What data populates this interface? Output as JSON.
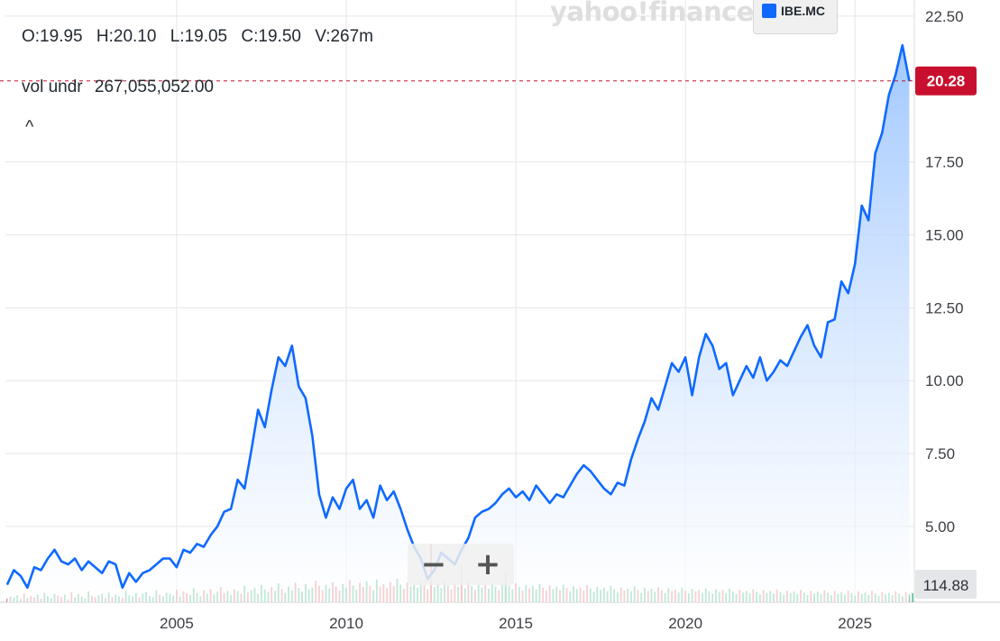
{
  "header": {
    "open": "O:19.95",
    "high": "H:20.10",
    "low": "L:19.05",
    "close": "C:19.50",
    "volume": "V:267m",
    "vol_label": "vol undr",
    "vol_value": "267,055,052.00",
    "collapse_icon": "chevron-up-icon",
    "collapse_glyph": "^"
  },
  "watermark": "yahoo!finance",
  "legend": {
    "label": "IBE.MC",
    "color": "#0f69ff"
  },
  "zoom": {
    "minus": "−",
    "plus": "+"
  },
  "colors": {
    "line": "#0f69ff",
    "area_top": "#9cc5ff",
    "area_bottom": "#ffffff",
    "vol_up": "#4cb88d",
    "vol_down": "#e4747b",
    "price_marker": "#c8102e",
    "volume_marker": "#8f949c",
    "grid": "#e6e6e6"
  },
  "chart_data": {
    "type": "area",
    "series": [
      {
        "name": "IBE.MC",
        "points": [
          [
            2000.0,
            3.0
          ],
          [
            2000.2,
            3.5
          ],
          [
            2000.4,
            3.3
          ],
          [
            2000.6,
            2.9
          ],
          [
            2000.8,
            3.6
          ],
          [
            2001.0,
            3.5
          ],
          [
            2001.2,
            3.9
          ],
          [
            2001.4,
            4.2
          ],
          [
            2001.6,
            3.8
          ],
          [
            2001.8,
            3.7
          ],
          [
            2002.0,
            3.9
          ],
          [
            2002.2,
            3.5
          ],
          [
            2002.4,
            3.8
          ],
          [
            2002.6,
            3.6
          ],
          [
            2002.8,
            3.4
          ],
          [
            2003.0,
            3.8
          ],
          [
            2003.2,
            3.7
          ],
          [
            2003.4,
            2.9
          ],
          [
            2003.6,
            3.4
          ],
          [
            2003.8,
            3.1
          ],
          [
            2004.0,
            3.4
          ],
          [
            2004.2,
            3.5
          ],
          [
            2004.4,
            3.7
          ],
          [
            2004.6,
            3.9
          ],
          [
            2004.8,
            3.9
          ],
          [
            2005.0,
            3.6
          ],
          [
            2005.2,
            4.2
          ],
          [
            2005.4,
            4.1
          ],
          [
            2005.6,
            4.4
          ],
          [
            2005.8,
            4.3
          ],
          [
            2006.0,
            4.7
          ],
          [
            2006.2,
            5.0
          ],
          [
            2006.4,
            5.5
          ],
          [
            2006.6,
            5.6
          ],
          [
            2006.8,
            6.6
          ],
          [
            2007.0,
            6.3
          ],
          [
            2007.2,
            7.6
          ],
          [
            2007.4,
            9.0
          ],
          [
            2007.6,
            8.4
          ],
          [
            2007.8,
            9.7
          ],
          [
            2008.0,
            10.8
          ],
          [
            2008.2,
            10.5
          ],
          [
            2008.4,
            11.2
          ],
          [
            2008.6,
            9.8
          ],
          [
            2008.8,
            9.4
          ],
          [
            2009.0,
            8.1
          ],
          [
            2009.2,
            6.1
          ],
          [
            2009.4,
            5.3
          ],
          [
            2009.6,
            6.0
          ],
          [
            2009.8,
            5.6
          ],
          [
            2010.0,
            6.3
          ],
          [
            2010.2,
            6.6
          ],
          [
            2010.4,
            5.6
          ],
          [
            2010.6,
            5.9
          ],
          [
            2010.8,
            5.3
          ],
          [
            2011.0,
            6.4
          ],
          [
            2011.2,
            5.9
          ],
          [
            2011.4,
            6.2
          ],
          [
            2011.6,
            5.6
          ],
          [
            2011.8,
            4.9
          ],
          [
            2012.0,
            4.3
          ],
          [
            2012.2,
            3.9
          ],
          [
            2012.4,
            3.2
          ],
          [
            2012.6,
            3.5
          ],
          [
            2012.8,
            4.1
          ],
          [
            2013.0,
            3.9
          ],
          [
            2013.2,
            3.7
          ],
          [
            2013.4,
            4.2
          ],
          [
            2013.6,
            4.6
          ],
          [
            2013.8,
            5.3
          ],
          [
            2014.0,
            5.5
          ],
          [
            2014.2,
            5.6
          ],
          [
            2014.4,
            5.8
          ],
          [
            2014.6,
            6.1
          ],
          [
            2014.8,
            6.3
          ],
          [
            2015.0,
            6.0
          ],
          [
            2015.2,
            6.2
          ],
          [
            2015.4,
            5.9
          ],
          [
            2015.6,
            6.4
          ],
          [
            2015.8,
            6.1
          ],
          [
            2016.0,
            5.8
          ],
          [
            2016.2,
            6.1
          ],
          [
            2016.4,
            6.0
          ],
          [
            2016.6,
            6.4
          ],
          [
            2016.8,
            6.8
          ],
          [
            2017.0,
            7.1
          ],
          [
            2017.2,
            6.9
          ],
          [
            2017.4,
            6.6
          ],
          [
            2017.6,
            6.3
          ],
          [
            2017.8,
            6.1
          ],
          [
            2018.0,
            6.5
          ],
          [
            2018.2,
            6.4
          ],
          [
            2018.4,
            7.3
          ],
          [
            2018.6,
            8.0
          ],
          [
            2018.8,
            8.6
          ],
          [
            2019.0,
            9.4
          ],
          [
            2019.2,
            9.0
          ],
          [
            2019.4,
            9.8
          ],
          [
            2019.6,
            10.6
          ],
          [
            2019.8,
            10.3
          ],
          [
            2020.0,
            10.8
          ],
          [
            2020.2,
            9.5
          ],
          [
            2020.4,
            10.8
          ],
          [
            2020.6,
            11.6
          ],
          [
            2020.8,
            11.2
          ],
          [
            2021.0,
            10.4
          ],
          [
            2021.2,
            10.6
          ],
          [
            2021.4,
            9.5
          ],
          [
            2021.6,
            10.0
          ],
          [
            2021.8,
            10.5
          ],
          [
            2022.0,
            10.1
          ],
          [
            2022.2,
            10.8
          ],
          [
            2022.4,
            10.0
          ],
          [
            2022.6,
            10.3
          ],
          [
            2022.8,
            10.7
          ],
          [
            2023.0,
            10.5
          ],
          [
            2023.2,
            11.0
          ],
          [
            2023.4,
            11.5
          ],
          [
            2023.6,
            11.9
          ],
          [
            2023.8,
            11.2
          ],
          [
            2024.0,
            10.8
          ],
          [
            2024.2,
            12.0
          ],
          [
            2024.4,
            12.1
          ],
          [
            2024.6,
            13.4
          ],
          [
            2024.8,
            13.0
          ],
          [
            2025.0,
            14.0
          ],
          [
            2025.2,
            16.0
          ],
          [
            2025.4,
            15.5
          ],
          [
            2025.6,
            17.8
          ],
          [
            2025.8,
            18.5
          ],
          [
            2026.0,
            19.8
          ],
          [
            2026.2,
            20.5
          ],
          [
            2026.4,
            21.5
          ],
          [
            2026.6,
            20.28
          ]
        ]
      }
    ],
    "volume": {
      "label": "vol undr",
      "start_year": 2000.0,
      "step_years": 0.1,
      "values_millions": [
        12,
        18,
        15,
        22,
        10,
        28,
        14,
        20,
        16,
        25,
        11,
        30,
        19,
        13,
        27,
        21,
        17,
        24,
        9,
        32,
        15,
        26,
        18,
        12,
        34,
        20,
        16,
        22,
        28,
        13,
        31,
        17,
        24,
        19,
        14,
        36,
        22,
        18,
        29,
        15,
        27,
        33,
        20,
        16,
        38,
        24,
        19,
        30,
        26,
        21,
        40,
        17,
        35,
        28,
        23,
        45,
        30,
        19,
        38,
        27,
        42,
        25,
        33,
        48,
        29,
        36,
        22,
        41,
        35,
        27,
        52,
        31,
        38,
        45,
        26,
        55,
        40,
        33,
        48,
        36,
        60,
        42,
        30,
        50,
        38,
        62,
        45,
        34,
        58,
        41,
        47,
        68,
        52,
        39,
        55,
        44,
        63,
        50,
        37,
        58,
        46,
        70,
        53,
        40,
        61,
        48,
        66,
        52,
        38,
        72,
        49,
        57,
        44,
        64,
        51,
        75,
        56,
        42,
        62,
        50,
        59,
        46,
        68,
        54,
        41,
        63,
        49,
        57,
        45,
        67,
        53,
        40,
        60,
        48,
        55,
        44,
        65,
        51,
        39,
        58,
        47,
        54,
        43,
        62,
        50,
        38,
        56,
        45,
        52,
        41,
        60,
        48,
        37,
        55,
        44,
        51,
        40,
        58,
        46,
        36,
        53,
        42,
        49,
        38,
        56,
        45,
        34,
        51,
        41,
        47,
        37,
        54,
        43,
        33,
        49,
        39,
        45,
        35,
        52,
        41,
        31,
        47,
        37,
        43,
        34,
        50,
        39,
        30,
        45,
        36,
        42,
        33,
        48,
        38,
        29,
        44,
        35,
        40,
        31,
        46,
        37,
        28,
        42,
        34,
        39,
        30,
        44,
        35,
        27,
        41,
        32,
        38,
        29,
        43,
        34,
        26,
        39,
        31,
        36,
        28,
        41,
        33,
        25,
        38,
        30,
        35,
        27,
        40,
        32,
        24,
        37,
        29,
        34,
        26,
        39,
        31,
        23,
        36,
        28,
        33,
        25,
        38,
        30,
        22,
        35,
        27,
        32,
        24,
        37,
        29,
        21,
        34,
        26,
        31,
        23,
        36,
        28,
        20,
        33,
        25,
        30,
        22,
        35,
        27,
        19,
        32,
        24,
        29,
        21,
        34,
        26,
        18,
        31,
        23,
        28,
        20,
        33,
        25,
        17,
        30,
        22,
        27,
        19,
        32,
        24,
        16,
        29,
        21,
        26
      ],
      "spike_years": [
        2012.5,
        2013.4,
        2014.7
      ],
      "spike_values_millions": [
        185,
        120,
        95
      ]
    },
    "x_range": [
      1999.95,
      2026.75
    ],
    "y_range": [
      2.4,
      22.5
    ],
    "x_ticks": [
      "2005",
      "2010",
      "2015",
      "2020",
      "2025"
    ],
    "x_tick_values": [
      2005,
      2010,
      2015,
      2020,
      2025
    ],
    "y_ticks": [
      "5.00",
      "7.50",
      "10.00",
      "12.50",
      "15.00",
      "17.50",
      "22.50"
    ],
    "y_tick_values": [
      5.0,
      7.5,
      10.0,
      12.5,
      15.0,
      17.5,
      22.5
    ],
    "last_price": "20.28",
    "last_price_value": 20.28,
    "volume_marker": "114.88",
    "grid": true,
    "legend_position": "top-right"
  }
}
